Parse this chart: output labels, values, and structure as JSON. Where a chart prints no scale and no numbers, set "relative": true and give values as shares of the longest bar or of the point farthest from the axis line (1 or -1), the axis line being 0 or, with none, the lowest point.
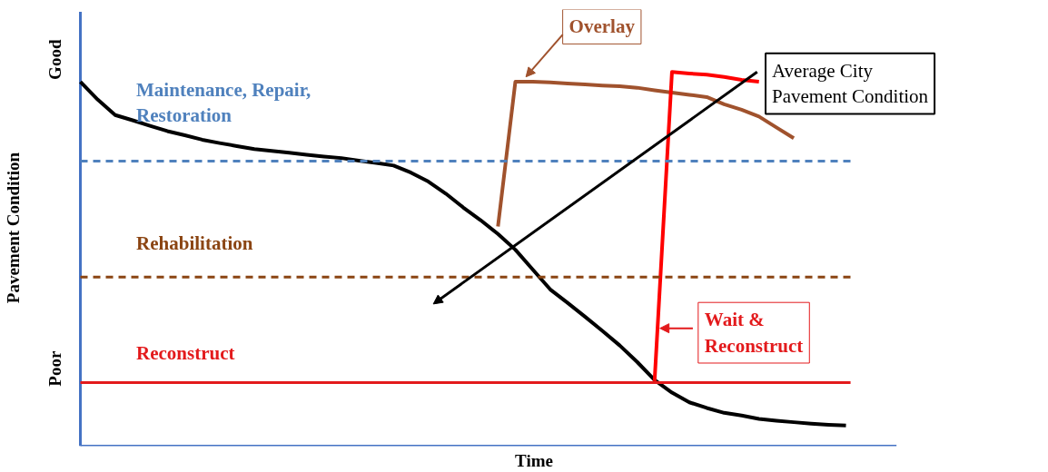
{
  "chart_data": {
    "type": "line",
    "xlabel": "Time",
    "ylabel": "Pavement Condition",
    "relative": true,
    "categories": [
      null,
      null,
      null,
      null,
      null,
      null,
      null,
      null,
      null,
      null,
      null,
      null,
      null,
      null,
      null,
      null,
      null,
      null,
      null,
      null,
      null,
      null,
      null,
      null,
      null,
      null,
      null,
      null,
      null,
      null,
      null,
      null,
      null,
      null,
      null,
      null,
      null,
      null,
      null,
      null,
      null,
      null,
      null,
      null,
      null
    ],
    "line_style": "solid",
    "marker": "none",
    "series": [
      {
        "color": "#000000",
        "values": [
          0.974,
          0.926,
          0.885,
          0.871,
          0.856,
          0.842,
          0.831,
          0.819,
          0.81,
          0.802,
          0.794,
          0.789,
          0.784,
          0.779,
          0.774,
          0.77,
          0.763,
          0.757,
          0.75,
          0.731,
          0.707,
          0.675,
          0.638,
          0.604,
          0.567,
          0.525,
          0.472,
          0.419,
          0.383,
          0.346,
          0.308,
          0.269,
          0.225,
          0.177,
          0.143,
          0.117,
          0.102,
          0.089,
          0.082,
          0.073,
          0.068,
          0.064,
          0.06,
          0.057,
          0.055
        ]
      },
      {
        "color": "#a0522d",
        "values": [
          null,
          null,
          null,
          null,
          null,
          null,
          null,
          null,
          null,
          null,
          null,
          null,
          null,
          null,
          null,
          null,
          null,
          null,
          null,
          null,
          null,
          null,
          null,
          null,
          0.587,
          0.974,
          0.974,
          0.972,
          0.969,
          0.967,
          0.964,
          0.962,
          0.958,
          0.951,
          0.945,
          0.939,
          0.933,
          0.914,
          0.899,
          0.881,
          0.852,
          0.823,
          null,
          null,
          null
        ]
      },
      {
        "color": "#ff0000",
        "values": [
          null,
          null,
          null,
          null,
          null,
          null,
          null,
          null,
          null,
          null,
          null,
          null,
          null,
          null,
          null,
          null,
          null,
          null,
          null,
          null,
          null,
          null,
          null,
          null,
          null,
          null,
          null,
          null,
          null,
          null,
          null,
          null,
          null,
          0.174,
          1,
          0.996,
          0.993,
          0.987,
          0.979,
          0.974,
          null,
          null,
          null,
          null,
          null
        ]
      }
    ],
    "ref_lines": [
      {
        "axis": "y",
        "value": 0.762,
        "label": "Maintenance, Repair,\nRestoration",
        "color": "#4f81bd",
        "line_style": "dashed"
      },
      {
        "axis": "y",
        "value": 0.452,
        "label": "Rehabilitation",
        "color": "#8b4513",
        "line_style": "dashed"
      },
      {
        "axis": "y",
        "value": 0.17,
        "label": "Reconstruct",
        "color": "#e31a1c",
        "line_style": "solid"
      }
    ],
    "annotations": [
      "Overlay",
      "Wait &\nReconstruct",
      "Average City\nPavement Condition",
      "Good",
      "Poor"
    ]
  }
}
